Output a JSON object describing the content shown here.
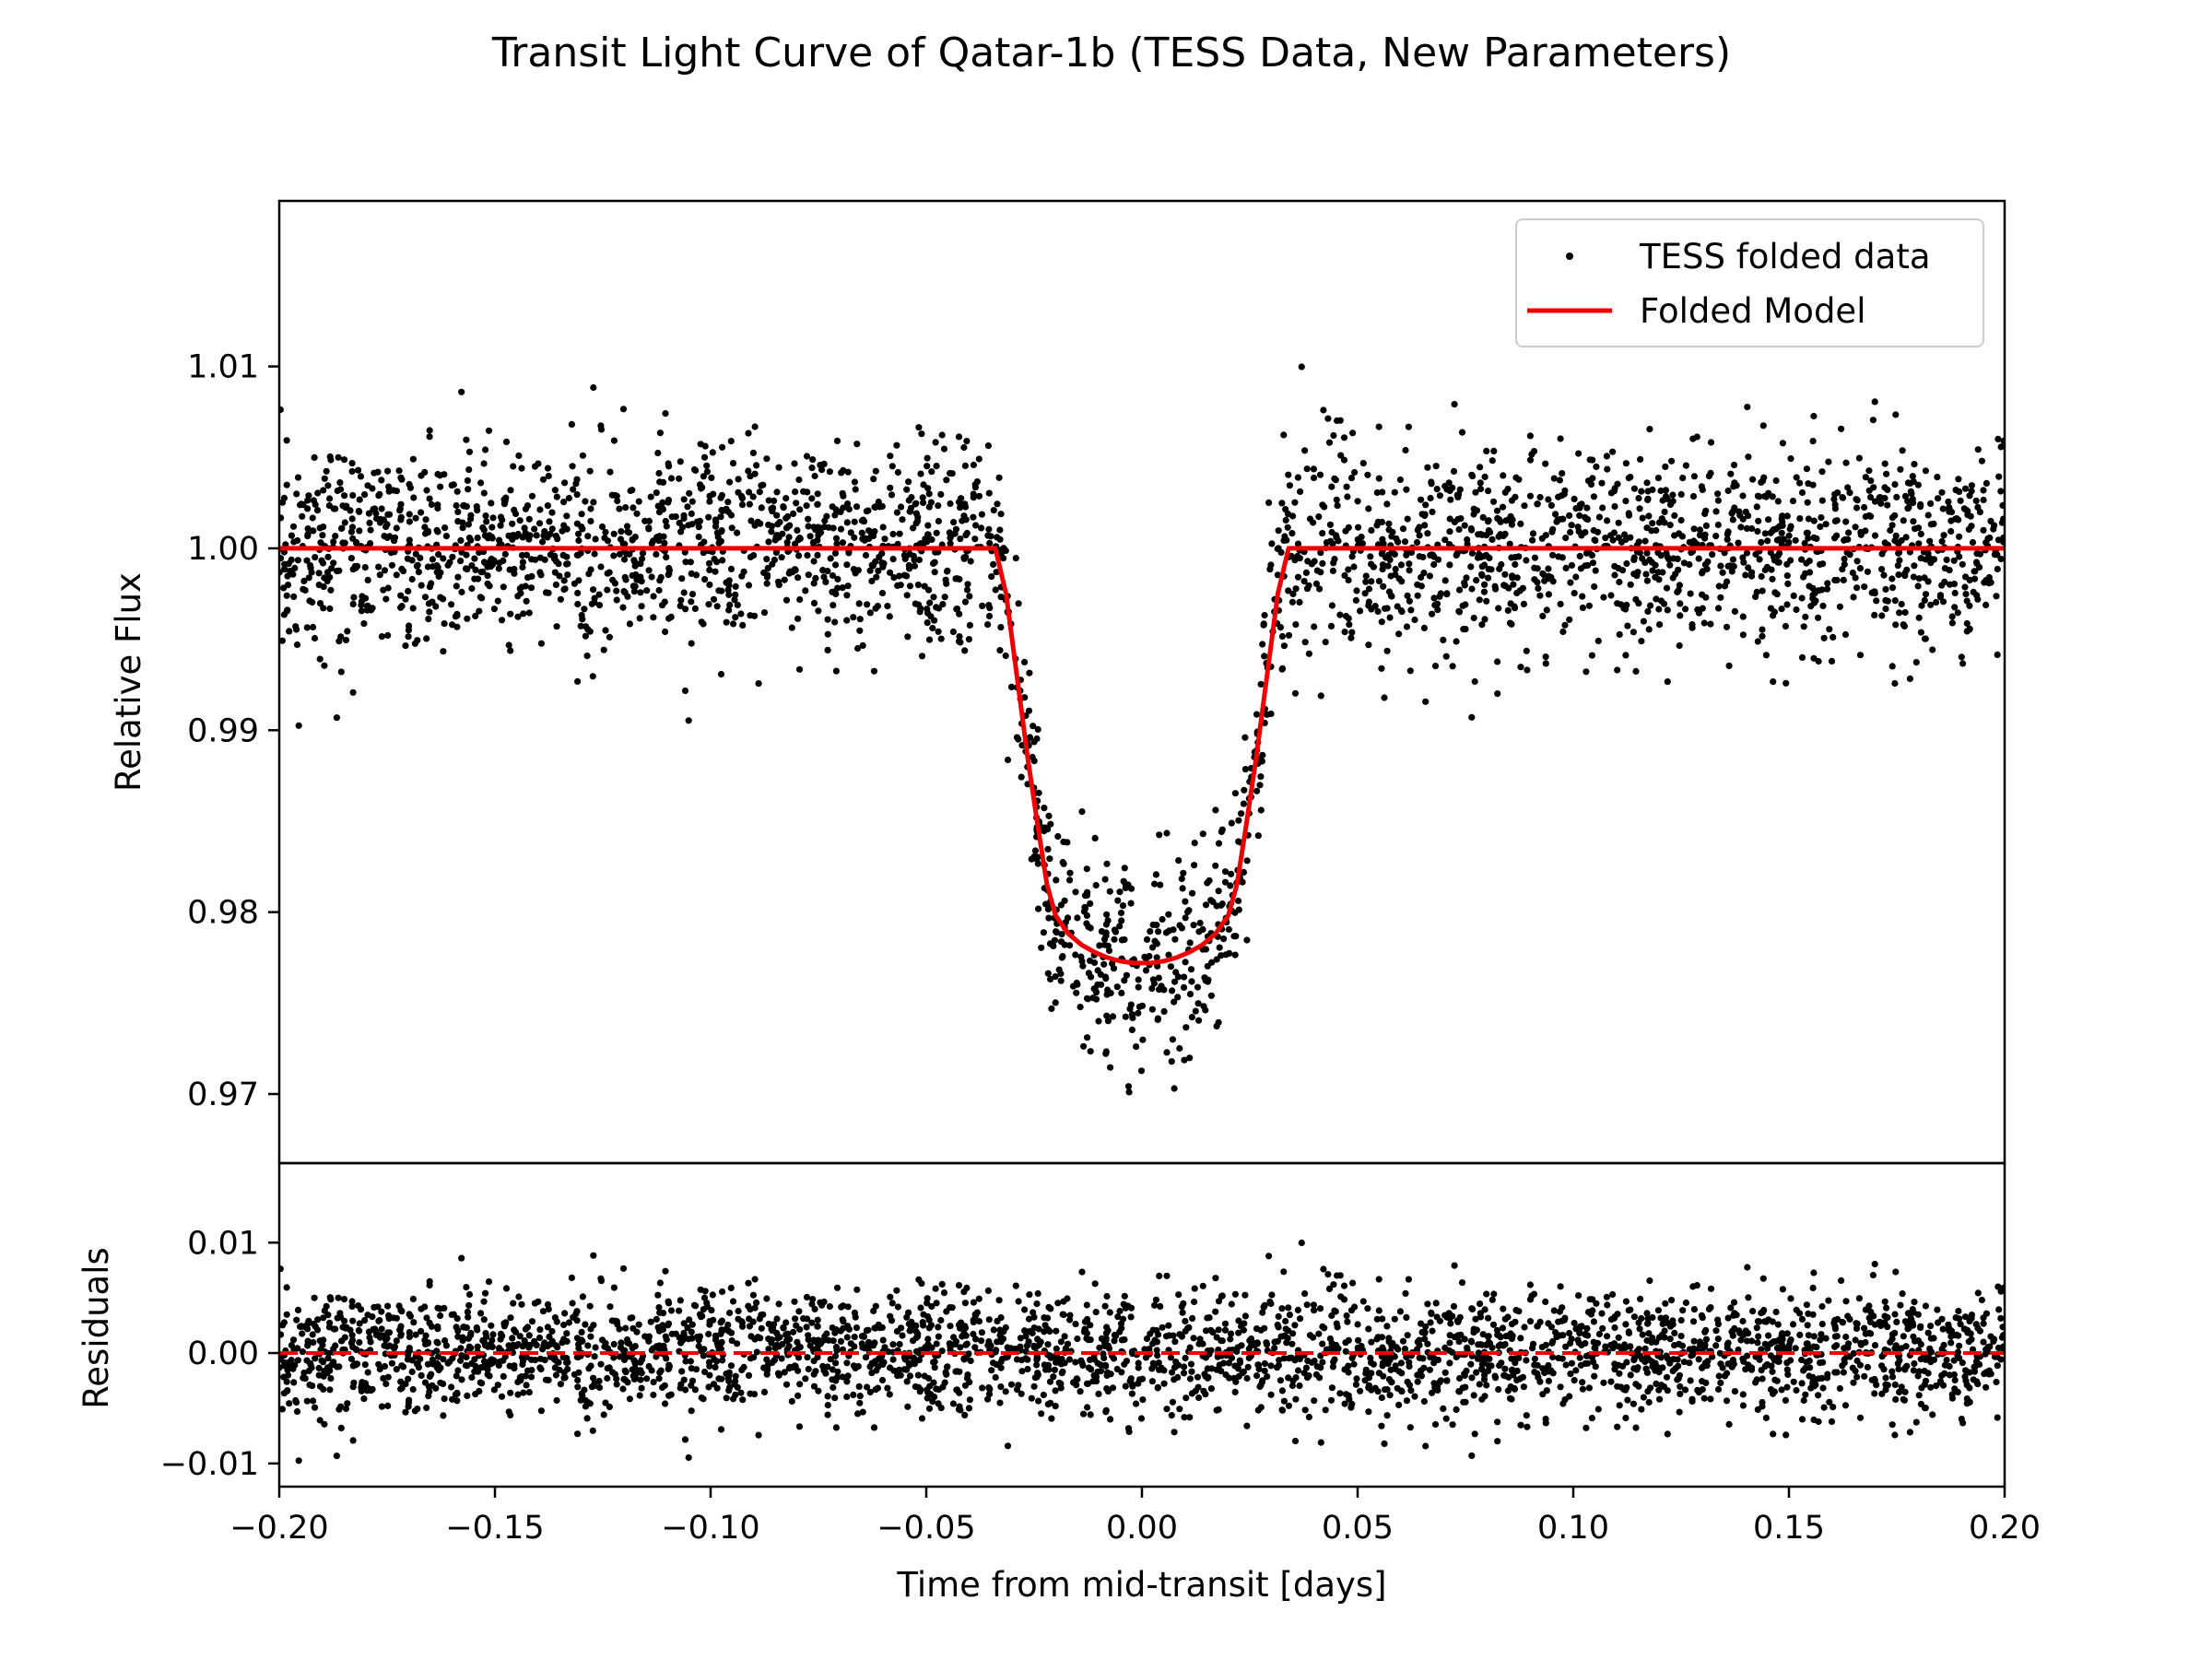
{
  "chart_data": [
    {
      "type": "scatter",
      "title": "Transit Light Curve of Qatar-1b (TESS Data, New Parameters)",
      "xlabel": "",
      "ylabel": "Relative Flux",
      "xlim": [
        -0.2,
        0.2
      ],
      "ylim": [
        0.9662,
        1.0191
      ],
      "x_ticks": [
        "−0.20",
        "−0.15",
        "−0.10",
        "−0.05",
        "0.00",
        "0.05",
        "0.10",
        "0.15",
        "0.20"
      ],
      "y_ticks": [
        {
          "value": 0.97,
          "label": "0.97"
        },
        {
          "value": 0.98,
          "label": "0.98"
        },
        {
          "value": 0.99,
          "label": "0.99"
        },
        {
          "value": 1.0,
          "label": "1.00"
        },
        {
          "value": 1.01,
          "label": "1.01"
        }
      ],
      "grid": false,
      "legend": {
        "placement": "top-right",
        "entries": [
          "TESS folded data",
          "Folded Model"
        ]
      },
      "series": [
        {
          "name": "TESS folded data",
          "kind": "scatter",
          "color": "#000000",
          "n_points": 3000,
          "baseline": 1.0,
          "scatter_sigma": 0.0028
        },
        {
          "name": "Folded Model",
          "kind": "line",
          "color": "#ee0000",
          "x": [
            -0.2,
            -0.034,
            -0.0315,
            -0.029,
            -0.0265,
            -0.024,
            -0.022,
            -0.02,
            -0.017,
            -0.014,
            -0.011,
            -0.008,
            -0.005,
            -0.002,
            0.0,
            0.002,
            0.005,
            0.008,
            0.011,
            0.014,
            0.017,
            0.02,
            0.022,
            0.024,
            0.0265,
            0.029,
            0.0315,
            0.034,
            0.2
          ],
          "y": [
            1.0,
            1.0,
            0.9975,
            0.993,
            0.9885,
            0.9845,
            0.9815,
            0.9798,
            0.9788,
            0.9782,
            0.9778,
            0.9775,
            0.9773,
            0.9772,
            0.9772,
            0.9772,
            0.9773,
            0.9775,
            0.9778,
            0.9782,
            0.9788,
            0.9798,
            0.9815,
            0.9845,
            0.9885,
            0.993,
            0.9975,
            1.0,
            1.0
          ]
        }
      ]
    },
    {
      "type": "scatter",
      "title": "",
      "xlabel": "Time from mid-transit [days]",
      "ylabel": "Residuals",
      "xlim": [
        -0.2,
        0.2
      ],
      "ylim": [
        -0.0121,
        0.0172
      ],
      "x_ticks": [
        {
          "value": -0.2,
          "label": "−0.20"
        },
        {
          "value": -0.15,
          "label": "−0.15"
        },
        {
          "value": -0.1,
          "label": "−0.10"
        },
        {
          "value": -0.05,
          "label": "−0.05"
        },
        {
          "value": 0.0,
          "label": "0.00"
        },
        {
          "value": 0.05,
          "label": "0.05"
        },
        {
          "value": 0.1,
          "label": "0.10"
        },
        {
          "value": 0.15,
          "label": "0.15"
        },
        {
          "value": 0.2,
          "label": "0.20"
        }
      ],
      "y_ticks": [
        {
          "value": -0.01,
          "label": "−0.01"
        },
        {
          "value": 0.0,
          "label": "0.00"
        },
        {
          "value": 0.01,
          "label": "0.01"
        }
      ],
      "grid": false,
      "series": [
        {
          "kind": "scatter",
          "color": "#000000",
          "n_points": 3000,
          "scatter_sigma": 0.0028
        },
        {
          "kind": "hline",
          "style": "dashed",
          "color": "#ee0000",
          "y": 0.0
        }
      ]
    }
  ]
}
